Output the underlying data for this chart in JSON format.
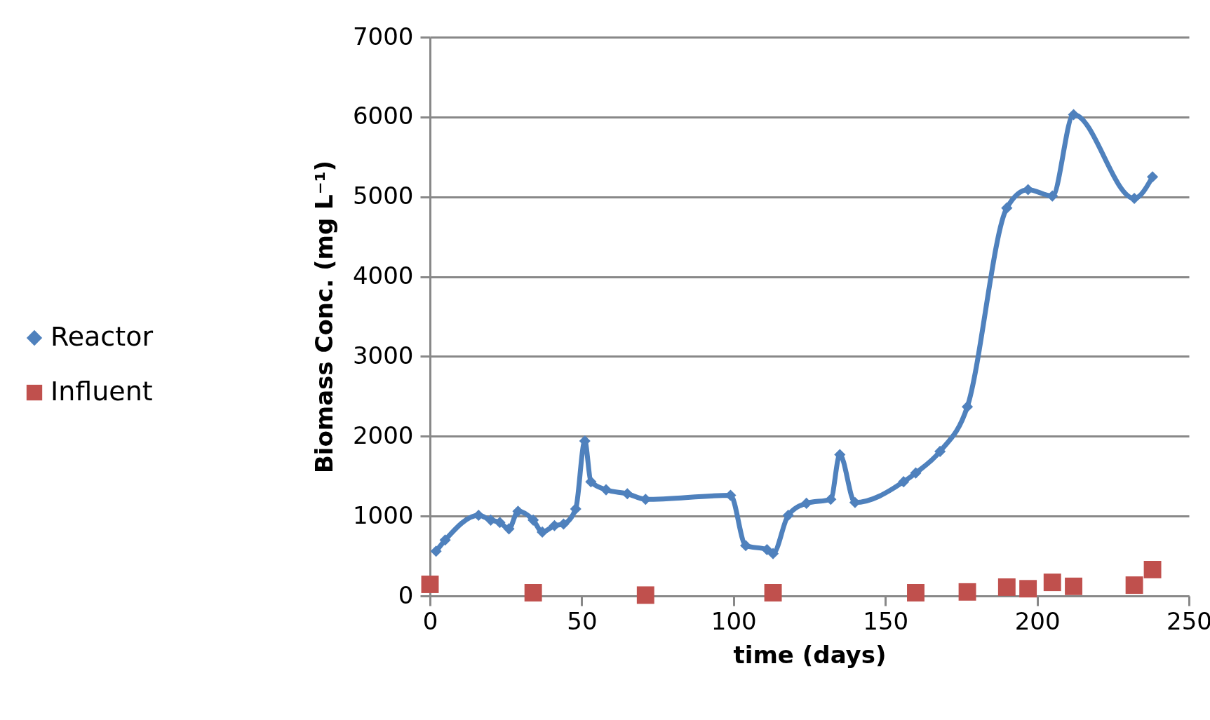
{
  "chart_data": {
    "type": "line",
    "xlabel": "time (days)",
    "ylabel": "Biomass Conc. (mg L⁻¹)",
    "xlim": [
      0,
      250
    ],
    "xticks": [
      0,
      50,
      100,
      150,
      200,
      250
    ],
    "ylim": [
      0,
      7000
    ],
    "yticks": [
      0,
      1000,
      2000,
      3000,
      4000,
      5000,
      6000,
      7000
    ],
    "grid": "y",
    "legend": "left",
    "series": [
      {
        "name": "Reactor",
        "type": "line",
        "color": "#4f81bd",
        "marker": "diamond",
        "x": [
          2,
          5,
          16,
          20,
          23,
          26,
          29,
          34,
          37,
          41,
          44,
          48,
          51,
          53,
          58,
          65,
          71,
          99,
          104,
          111,
          113,
          118,
          124,
          132,
          135,
          140,
          156,
          160,
          168,
          177,
          190,
          197,
          205,
          212,
          232,
          238
        ],
        "values": [
          560,
          700,
          1010,
          950,
          920,
          840,
          1060,
          950,
          800,
          880,
          900,
          1090,
          1940,
          1430,
          1330,
          1280,
          1210,
          1260,
          630,
          580,
          530,
          1010,
          1160,
          1210,
          1770,
          1170,
          1430,
          1540,
          1810,
          2370,
          4860,
          5090,
          5010,
          6030,
          4980,
          5250
        ]
      },
      {
        "name": "Influent",
        "type": "scatter",
        "color": "#c0504d",
        "marker": "square",
        "x": [
          0,
          34,
          71,
          113,
          160,
          177,
          190,
          197,
          205,
          212,
          232,
          238
        ],
        "values": [
          145,
          40,
          10,
          40,
          40,
          50,
          110,
          90,
          170,
          120,
          135,
          330
        ]
      }
    ]
  }
}
